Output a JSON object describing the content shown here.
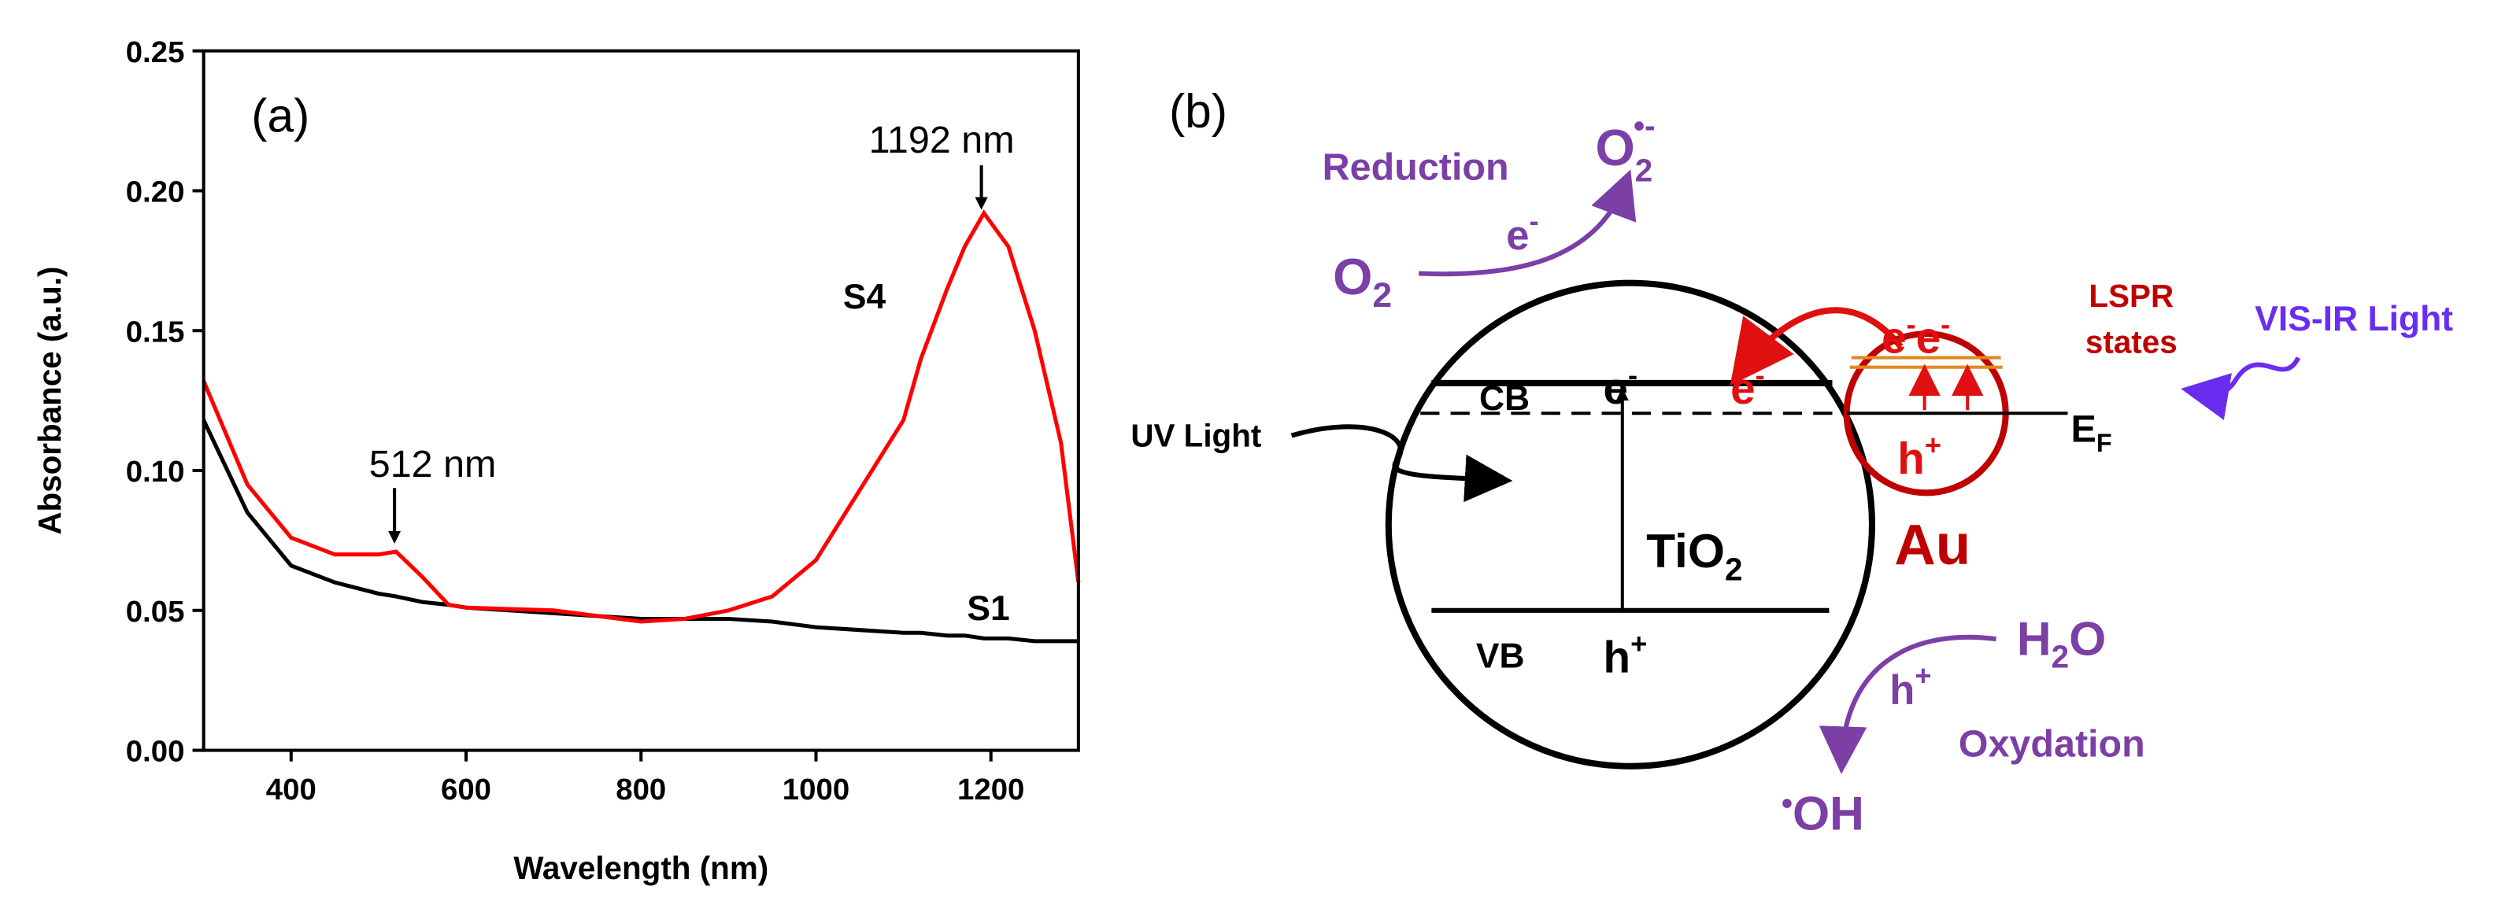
{
  "chart_data": {
    "type": "line",
    "panel_label": "(a)",
    "xlabel": "Wavelength (nm)",
    "ylabel": "Absorbance (a.u.)",
    "x": [
      300,
      350,
      400,
      450,
      500,
      520,
      550,
      580,
      600,
      700,
      800,
      850,
      900,
      950,
      1000,
      1050,
      1100,
      1120,
      1150,
      1170,
      1192,
      1220,
      1250,
      1280,
      1300
    ],
    "series": [
      {
        "name": "S1",
        "color": "#000000",
        "values": [
          0.118,
          0.085,
          0.066,
          0.06,
          0.056,
          0.055,
          0.053,
          0.052,
          0.051,
          0.049,
          0.047,
          0.047,
          0.047,
          0.046,
          0.044,
          0.043,
          0.042,
          0.042,
          0.041,
          0.041,
          0.04,
          0.04,
          0.039,
          0.039,
          0.039
        ]
      },
      {
        "name": "S4",
        "color": "#ff0000",
        "values": [
          0.132,
          0.095,
          0.076,
          0.07,
          0.07,
          0.071,
          0.062,
          0.052,
          0.051,
          0.05,
          0.046,
          0.047,
          0.05,
          0.055,
          0.068,
          0.093,
          0.118,
          0.14,
          0.165,
          0.18,
          0.192,
          0.18,
          0.15,
          0.11,
          0.06
        ]
      }
    ],
    "annotations": [
      "512 nm",
      "1192 nm"
    ],
    "xlim": [
      300,
      1300
    ],
    "xticks": [
      400,
      600,
      800,
      1000,
      1200
    ],
    "ylim": [
      0,
      0.25
    ],
    "yticks": [
      {
        "value": 0,
        "label": "0.00"
      },
      {
        "value": 0.05,
        "label": "0.05"
      },
      {
        "value": 0.1,
        "label": "0.10"
      },
      {
        "value": 0.15,
        "label": "0.15"
      },
      {
        "value": 0.2,
        "label": "0.20"
      },
      {
        "value": 0.25,
        "label": "0.25"
      }
    ]
  },
  "diagram": {
    "panel_label": "(b)",
    "reduction": "Reduction",
    "o2_radical": {
      "base": "O",
      "sub": "2",
      "sup": "•-"
    },
    "reduction_electron": {
      "base": "e",
      "sup": "-"
    },
    "o2": {
      "base": "O",
      "sub": "2"
    },
    "cb": "CB",
    "cb_electron": {
      "base": "e",
      "sup": "-"
    },
    "transfer_electron": {
      "base": "e",
      "sup": "-"
    },
    "au_electrons": {
      "base1": "e",
      "sup1": "-",
      "base2": "e",
      "sup2": "-"
    },
    "lspr": [
      "LSPR",
      "states"
    ],
    "vis_ir": "VIS-IR Light",
    "uv": "UV Light",
    "fermi": {
      "base": "E",
      "sub": "F"
    },
    "au_hole": {
      "base": "h",
      "sup": "+"
    },
    "tio2": {
      "base": "TiO",
      "sub": "2"
    },
    "au": "Au",
    "vb": "VB",
    "vb_hole": {
      "base": "h",
      "sup": "+"
    },
    "h2o": {
      "base1": "H",
      "sub": "2",
      "base2": "O"
    },
    "oxidation_hole": {
      "base": "h",
      "sup": "+"
    },
    "oxidation": "Oxydation",
    "oh": {
      "dot": "•",
      "base": "OH"
    }
  }
}
